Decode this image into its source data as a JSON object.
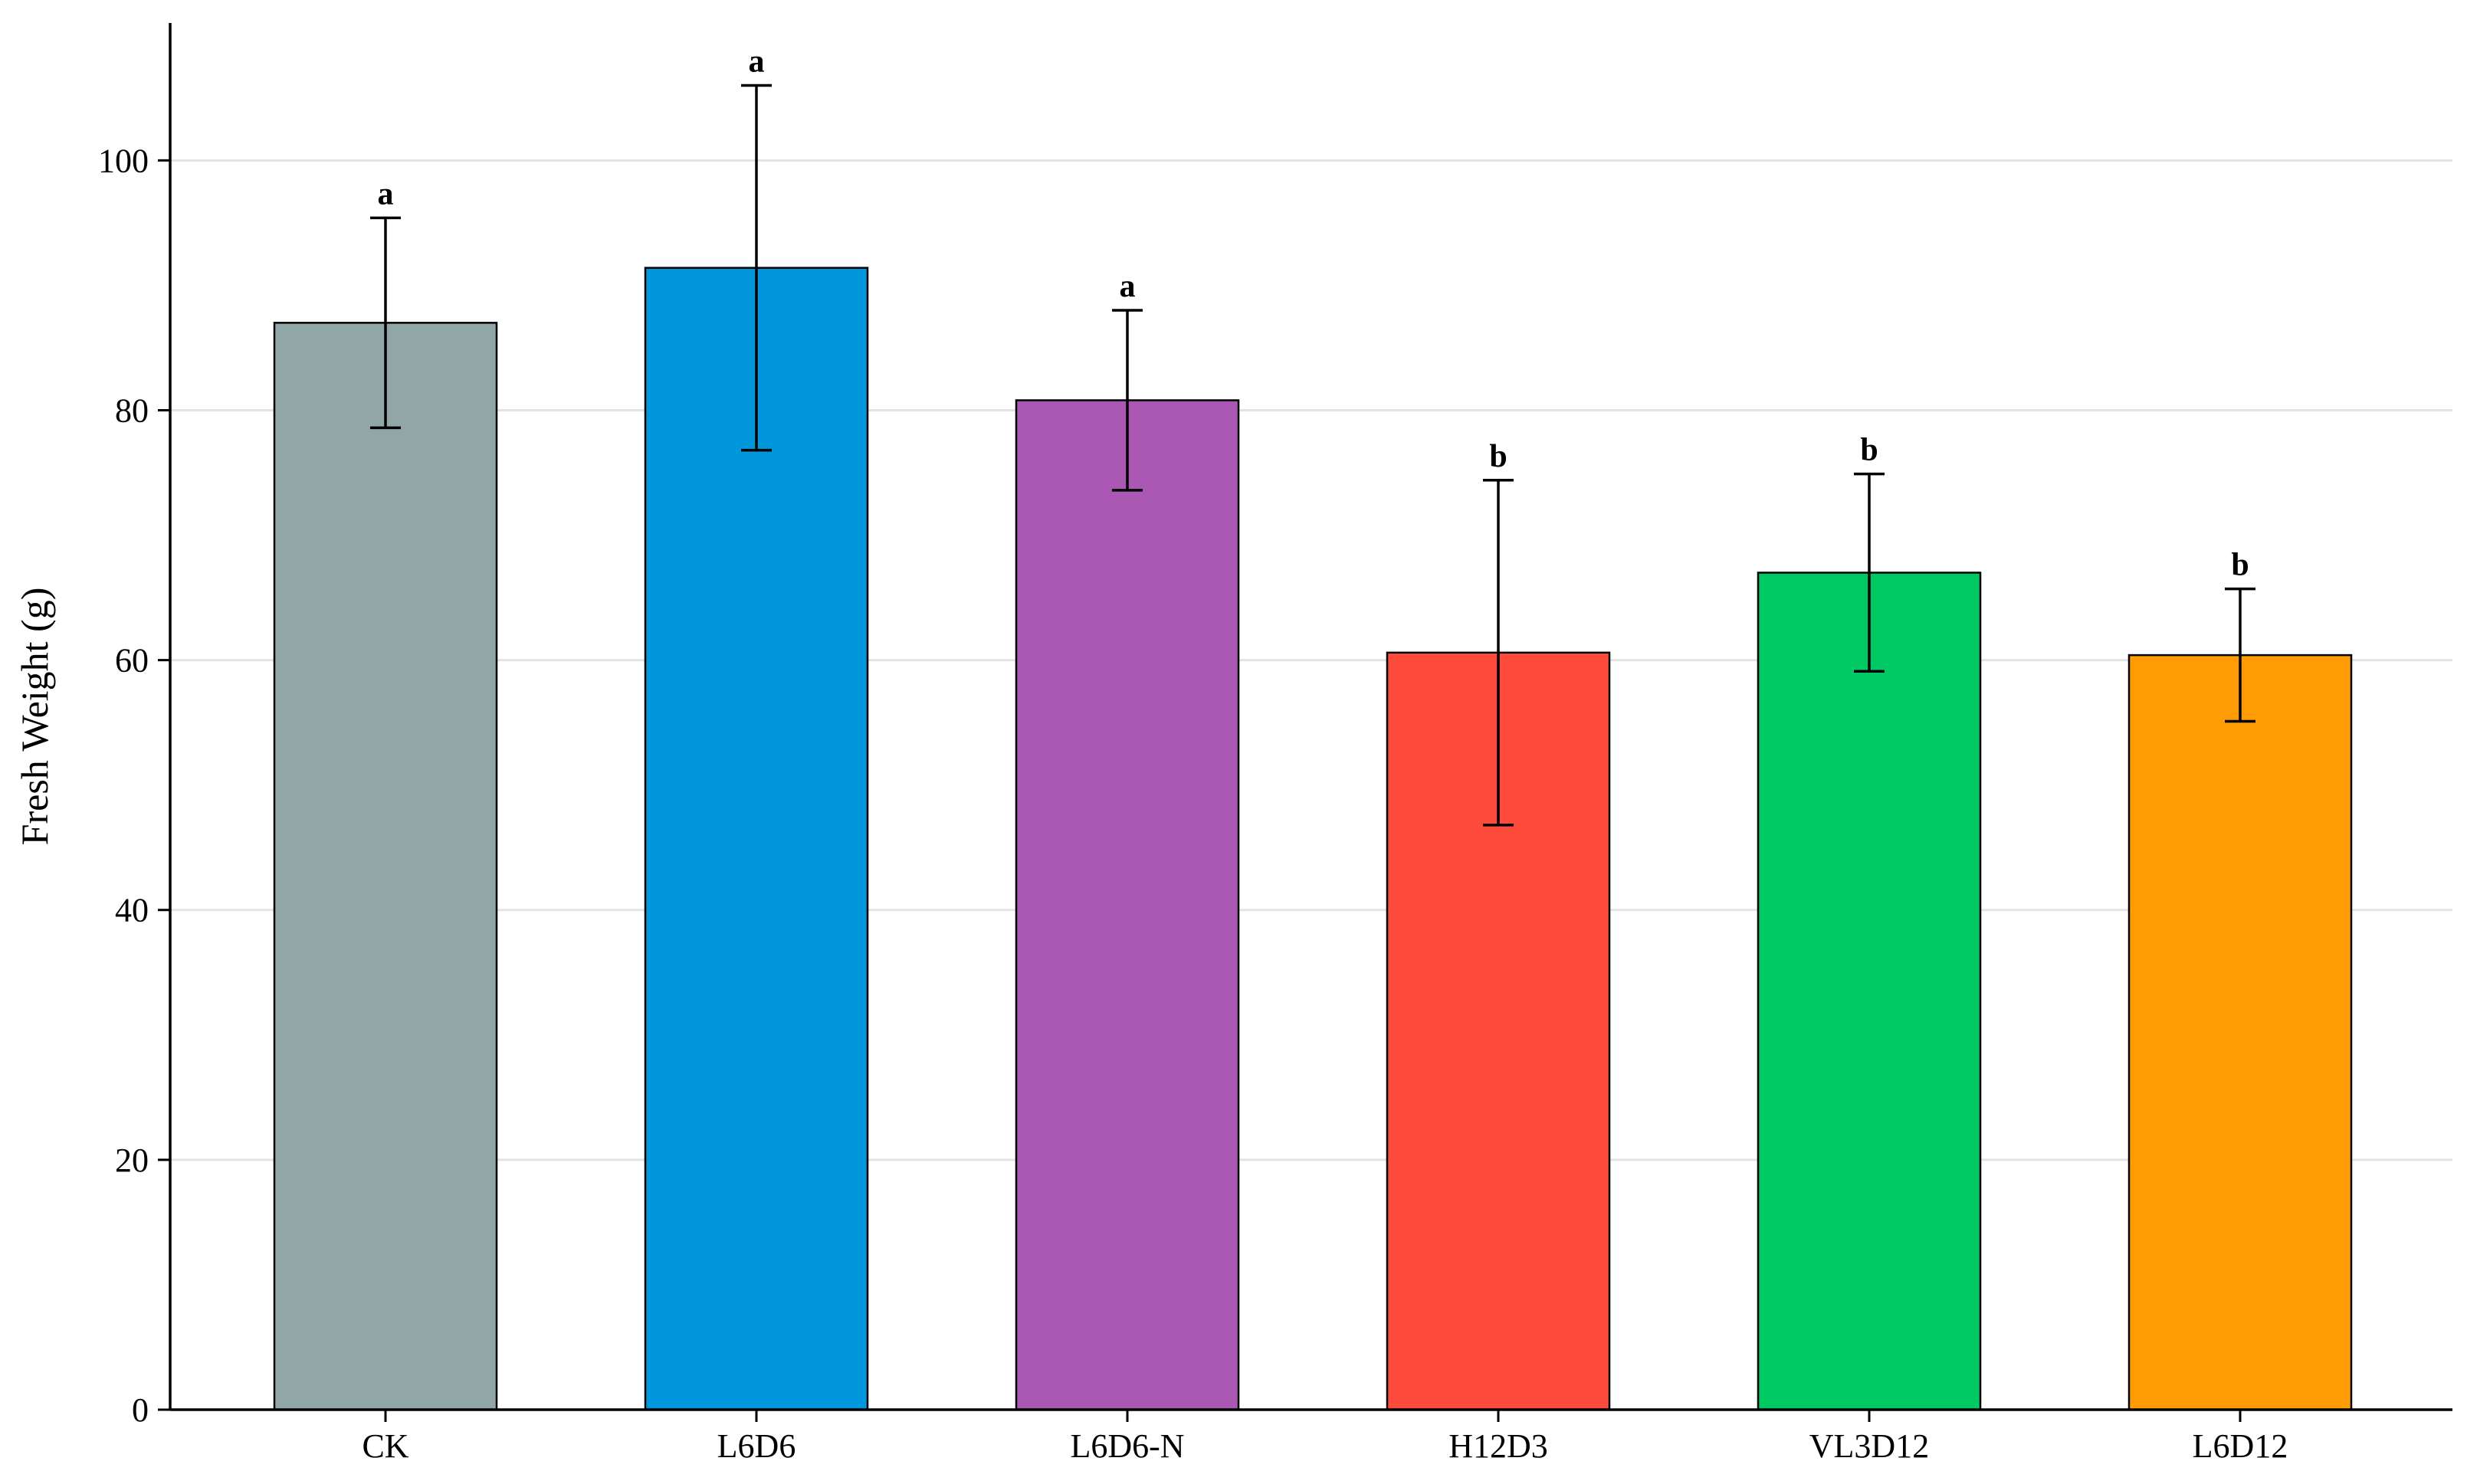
{
  "chart_data": {
    "type": "bar",
    "categories": [
      "CK",
      "L6D6",
      "L6D6-N",
      "H12D3",
      "VL3D12",
      "L6D12"
    ],
    "values": [
      87.0,
      91.4,
      80.8,
      60.6,
      67.0,
      60.4
    ],
    "error_bars": [
      8.4,
      14.6,
      7.2,
      13.8,
      7.9,
      5.3
    ],
    "significance_labels": [
      "a",
      "a",
      "a",
      "b",
      "b",
      "b"
    ],
    "colors": [
      "#91a6a6",
      "#0097dc",
      "#ab57b4",
      "#ff4b3b",
      "#00c964",
      "#ff9c05"
    ],
    "title": "",
    "xlabel": "",
    "ylabel": "Fresh Weight (g)",
    "ylim": [
      0,
      111
    ],
    "yticks": [
      0,
      20,
      40,
      60,
      80,
      100
    ],
    "grid": "horizontal"
  }
}
